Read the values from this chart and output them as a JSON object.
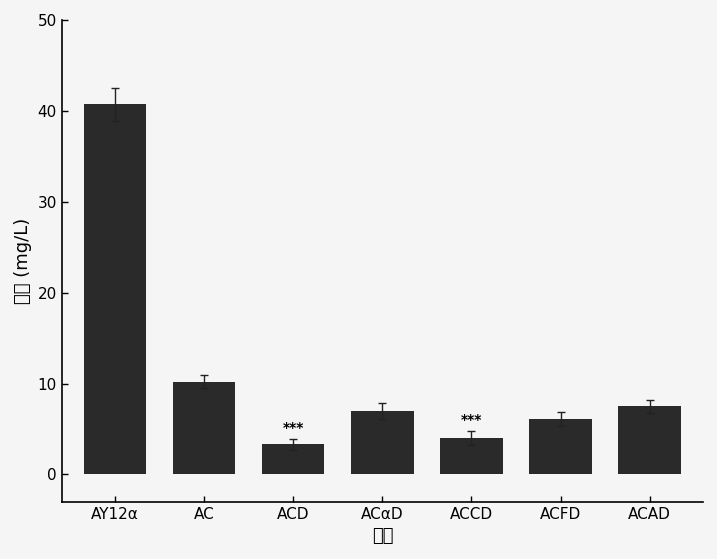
{
  "categories": [
    "AY12α",
    "AC",
    "ACD",
    "ACαD",
    "ACCD",
    "ACFD",
    "ACAD"
  ],
  "values": [
    40.7,
    10.2,
    3.3,
    7.0,
    4.0,
    6.1,
    7.5
  ],
  "errors": [
    1.8,
    0.7,
    0.6,
    0.9,
    0.8,
    0.8,
    0.7
  ],
  "bar_color": "#2a2a2a",
  "bar_width": 0.7,
  "ylabel_chinese": "尿素",
  "ylabel_units": "(mg/L)",
  "xlabel": "菌株",
  "ylim": [
    -3,
    50
  ],
  "yticks": [
    0,
    10,
    20,
    30,
    40,
    50
  ],
  "sig_indices": [
    2,
    4
  ],
  "sig_label": "***",
  "background_color": "#f5f5f5",
  "label_fontsize": 13,
  "tick_fontsize": 11,
  "sig_fontsize": 10
}
